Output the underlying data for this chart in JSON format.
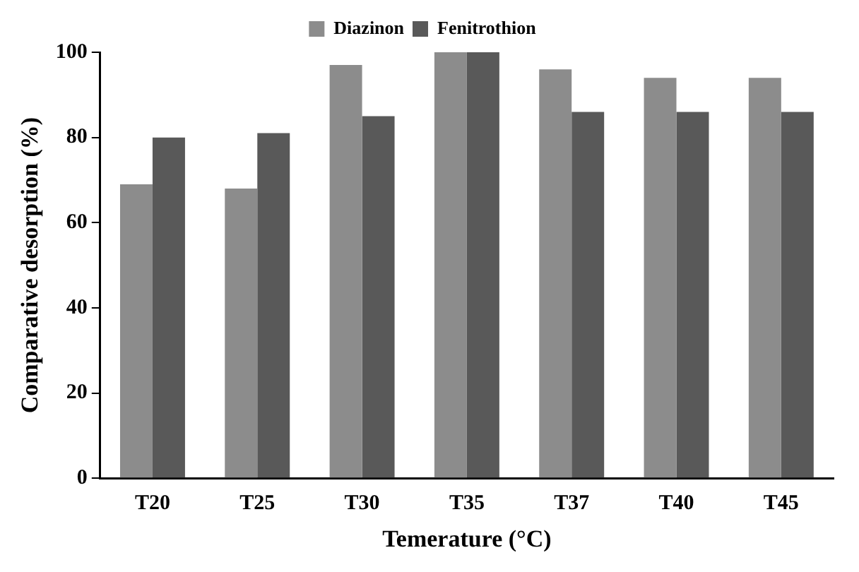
{
  "chart_data": {
    "type": "bar",
    "xlabel": "Temerature (°C)",
    "ylabel": "Comparative desorption (%)",
    "categories": [
      "T20",
      "T25",
      "T30",
      "T35",
      "T37",
      "T40",
      "T45"
    ],
    "series": [
      {
        "name": "Diazinon",
        "color": "#8c8c8c",
        "values": [
          69,
          68,
          97,
          100,
          96,
          94,
          94
        ]
      },
      {
        "name": "Fenitrothion",
        "color": "#595959",
        "values": [
          80,
          81,
          85,
          100,
          86,
          86,
          86
        ]
      }
    ],
    "ylim": [
      0,
      100
    ],
    "yticks": [
      0,
      20,
      40,
      60,
      80,
      100
    ],
    "grid": false,
    "legend": "top"
  }
}
